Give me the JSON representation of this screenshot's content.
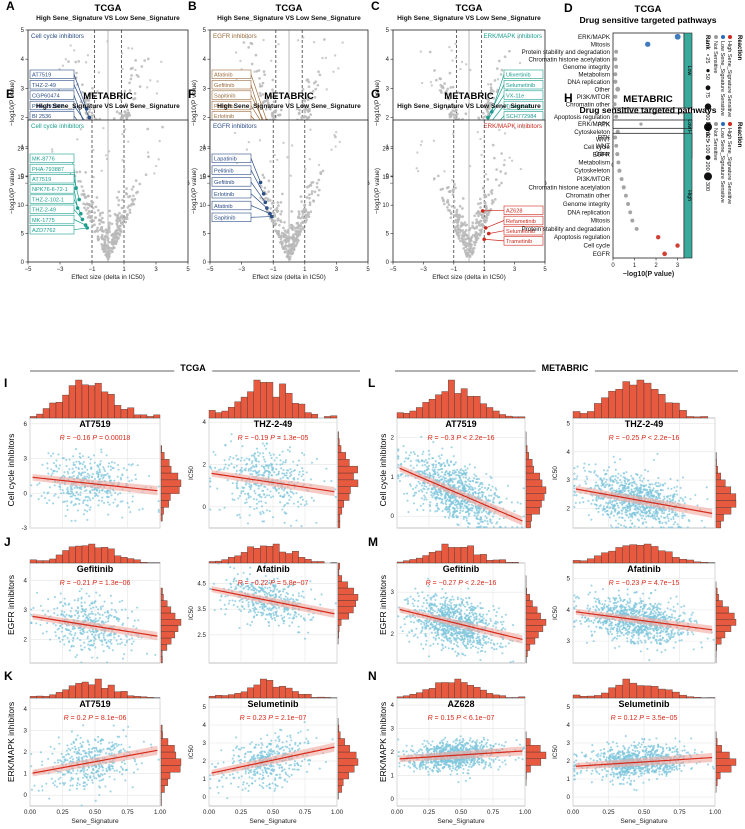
{
  "colors": {
    "gray_point": "#b8b8b8",
    "teal": "#1b9e8f",
    "navy": "#2b4d87",
    "brown": "#9c6b3c",
    "red": "#cc2a1f",
    "scatter_point": "#7ec5dc",
    "hist_fill": "#e85a3f",
    "reg_line": "#d72a1a",
    "blue_dot": "#2257a8",
    "legend_high": "#cc2a1f",
    "legend_low": "#2b6bb8",
    "legend_not": "#9a9a9a"
  },
  "volcano_common": {
    "subtitle": "High Sene_Signature VS Low Sene_Signature",
    "xlabel": "Effect size (delta in IC50)",
    "ylabel": "−log10(P value)"
  },
  "volcanos": [
    {
      "panel": "A",
      "title": "TCGA",
      "category": "Cell cycle inhibitors",
      "color": "navy",
      "side": "left",
      "xlim": [
        -6,
        6
      ],
      "xticks": [
        -6,
        -4,
        -2,
        0,
        2,
        4,
        6
      ],
      "ylim": [
        0,
        5
      ],
      "yticks": [
        0,
        1,
        2,
        3,
        4,
        5
      ],
      "labels": [
        "AT7519",
        "THZ-2-49",
        "CGP60474",
        "PHA-793887",
        "BI 2536",
        "NPK76-II-72-1",
        "CGP-082996",
        "MK-8776",
        "AZD7762"
      ],
      "labeled_points": [
        {
          "x": -1.6,
          "y": 2.3
        },
        {
          "x": -1.4,
          "y": 2.0
        },
        {
          "x": -1.8,
          "y": 1.8
        },
        {
          "x": -1.3,
          "y": 1.6
        },
        {
          "x": -1.5,
          "y": 1.4
        },
        {
          "x": -1.2,
          "y": 1.3
        },
        {
          "x": -1.4,
          "y": 1.1
        },
        {
          "x": -1.1,
          "y": 1.05
        },
        {
          "x": -1.0,
          "y": 1.0
        }
      ]
    },
    {
      "panel": "B",
      "title": "TCGA",
      "category": "EGFR inhibitors",
      "color": "brown",
      "side": "left",
      "xlim": [
        -6,
        6
      ],
      "xticks": [
        -6,
        -4,
        -2,
        0,
        2,
        4,
        6
      ],
      "ylim": [
        0,
        5
      ],
      "yticks": [
        0,
        1,
        2,
        3,
        4,
        5
      ],
      "labels": [
        "Afatinib",
        "Gefitinib",
        "Sapitinib",
        "Pelitinib",
        "Erlotinib",
        "Cetuximab",
        "Osimertinib"
      ],
      "labeled_points": [
        {
          "x": -1.7,
          "y": 1.9
        },
        {
          "x": -1.9,
          "y": 1.7
        },
        {
          "x": -1.5,
          "y": 1.5
        },
        {
          "x": -1.4,
          "y": 1.35
        },
        {
          "x": -1.2,
          "y": 1.2
        },
        {
          "x": -1.0,
          "y": 1.1
        },
        {
          "x": -1.3,
          "y": 1.0
        }
      ]
    },
    {
      "panel": "C",
      "title": "TCGA",
      "category": "ERK/MAPK inhibitors",
      "color": "teal",
      "side": "right",
      "xlim": [
        -6,
        6
      ],
      "xticks": [
        -6,
        -4,
        -2,
        0,
        2,
        4,
        6
      ],
      "ylim": [
        0,
        5
      ],
      "yticks": [
        0,
        1,
        2,
        3,
        4,
        5
      ],
      "labels": [
        "Ulixertinib",
        "Selumetinib",
        "VX-11e",
        "Trametinib",
        "SCH772984",
        "Dabrafenib",
        "Refametinib",
        "CI-1040"
      ],
      "labeled_points": [
        {
          "x": 1.8,
          "y": 2.2
        },
        {
          "x": 1.5,
          "y": 2.0
        },
        {
          "x": 1.3,
          "y": 1.8
        },
        {
          "x": 1.1,
          "y": 1.5
        },
        {
          "x": 1.2,
          "y": 1.3
        },
        {
          "x": 1.0,
          "y": 1.2
        },
        {
          "x": 1.1,
          "y": 1.05
        },
        {
          "x": 1.0,
          "y": 1.0
        }
      ]
    },
    {
      "panel": "E",
      "title": "METABRIC",
      "category": "Cell cycle inhibitors",
      "color": "teal",
      "side": "left",
      "xlim": [
        -5,
        5
      ],
      "xticks": [
        -5,
        -3,
        -1,
        1,
        3,
        5
      ],
      "ylim": [
        0,
        25
      ],
      "yticks": [
        0,
        5,
        10,
        15,
        20
      ],
      "labels": [
        "MK-8776",
        "PHA-793887",
        "AT7519",
        "NPK76-II-72-1",
        "THZ-2-102-1",
        "THZ-2-49",
        "MK-1775",
        "AZD7762"
      ],
      "labeled_points": [
        {
          "x": -2.4,
          "y": 15
        },
        {
          "x": -2.0,
          "y": 13
        },
        {
          "x": -1.8,
          "y": 11
        },
        {
          "x": -1.9,
          "y": 9.5
        },
        {
          "x": -1.7,
          "y": 8.5
        },
        {
          "x": -1.6,
          "y": 7.5
        },
        {
          "x": -1.4,
          "y": 6.5
        },
        {
          "x": -1.3,
          "y": 6.0
        }
      ]
    },
    {
      "panel": "F",
      "title": "METABRIC",
      "category": "EGFR inhibitors",
      "color": "navy",
      "side": "left",
      "xlim": [
        -5,
        5
      ],
      "xticks": [
        -5,
        -3,
        -1,
        1,
        3,
        5
      ],
      "ylim": [
        0,
        25
      ],
      "yticks": [
        0,
        5,
        10,
        15,
        20
      ],
      "labels": [
        "Lapatinib",
        "Pelitinib",
        "Gefitinib",
        "Erlotinib",
        "Afatinib",
        "Sapitinib"
      ],
      "labeled_points": [
        {
          "x": -1.8,
          "y": 14
        },
        {
          "x": -1.6,
          "y": 12
        },
        {
          "x": -1.5,
          "y": 10.5
        },
        {
          "x": -1.4,
          "y": 9.5
        },
        {
          "x": -1.2,
          "y": 8.5
        },
        {
          "x": -1.1,
          "y": 8.0
        }
      ]
    },
    {
      "panel": "G",
      "title": "METABRIC",
      "category": "ERK/MAPK inhibitors",
      "color": "red",
      "side": "right",
      "xlim": [
        -5,
        5
      ],
      "xticks": [
        -5,
        -3,
        -1,
        1,
        3,
        5
      ],
      "ylim": [
        0,
        25
      ],
      "yticks": [
        0,
        5,
        10,
        15,
        20
      ],
      "labels": [
        "AZ628",
        "Refametinib",
        "Selumetinib",
        "Trametinib"
      ],
      "labeled_points": [
        {
          "x": 0.9,
          "y": 9
        },
        {
          "x": 1.1,
          "y": 6
        },
        {
          "x": 1.3,
          "y": 5
        },
        {
          "x": 1.0,
          "y": 4
        }
      ]
    }
  ],
  "dotplots": [
    {
      "panel": "D",
      "title": "TCGA",
      "subtitle": "Drug sensitive targeted pathways",
      "xlabel": "−log10(P value)",
      "xlim": [
        0,
        4.5
      ],
      "xticks": [
        0,
        1,
        2,
        3,
        4
      ],
      "legend_reaction_title": "Reaction",
      "legend_reaction": [
        "High Sene_Signature Sensitive",
        "Low Sene_Signature Sensitive",
        "Not Sensitive"
      ],
      "legend_rank_title": "Rank",
      "legend_rank": [
        "25",
        "50",
        "75",
        "100",
        "125"
      ],
      "groups": [
        {
          "name": "Low",
          "pathways": [
            "ERK/MAPK",
            "Mitosis",
            "Protein stability and degradation",
            "Chromatin histone acetylation",
            "Genome integrity",
            "Metabolism",
            "DNA replication",
            "Other",
            "PI3K/MTOR",
            "Chromatin other"
          ],
          "values": [
            4.1,
            2.2,
            0.2,
            0.15,
            0.2,
            0.15,
            0.15,
            0.3,
            0.15,
            0.1
          ],
          "sizes": [
            0.8,
            0.7,
            0.4,
            0.4,
            0.4,
            0.4,
            0.45,
            0.6,
            0.45,
            0.4
          ],
          "reaction": [
            "low",
            "low",
            "not",
            "not",
            "not",
            "not",
            "not",
            "not",
            "not",
            "not"
          ]
        },
        {
          "name": "High",
          "pathways": [
            "Apoptosis regulation",
            "RTK",
            "Cytoskeleton",
            "WNT",
            "Cell cycle",
            "EGFR"
          ],
          "values": [
            0.2,
            0.1,
            0.3,
            0.2,
            2.5,
            2.0
          ],
          "sizes": [
            0.4,
            0.35,
            0.45,
            0.4,
            0.55,
            0.7
          ],
          "reaction": [
            "not",
            "not",
            "not",
            "not",
            "high",
            "high"
          ]
        }
      ]
    },
    {
      "panel": "H",
      "title": "METABRIC",
      "subtitle": "Drug sensitive targeted pathways",
      "xlabel": "−log10(P value)",
      "xlim": [
        0,
        3.3
      ],
      "xticks": [
        0,
        1,
        2,
        3
      ],
      "legend_reaction_title": "Reaction",
      "legend_reaction": [
        "High Sene_Signature Sensitive",
        "Low Sene_Signature Sensitive",
        "Not Sensitive"
      ],
      "legend_rank_title": "Rank",
      "legend_rank": [
        "100",
        "200",
        "300"
      ],
      "groups": [
        {
          "name": "Low",
          "pathways": [
            "ERK/MAPK"
          ],
          "values": [
            1.3
          ],
          "sizes": [
            0.25
          ],
          "reaction": [
            "not"
          ]
        },
        {
          "name": "High",
          "pathways": [
            "RTK",
            "WNT",
            "Other",
            "Metabolism",
            "Cytoskeleton",
            "PI3K/MTOR",
            "Chromatin histone acetylation",
            "Chromatin other",
            "Genome integrity",
            "DNA replication",
            "Mitosis",
            "Protein stability and degradation",
            "Apoptosis regulation",
            "Cell cycle",
            "EGFR"
          ],
          "values": [
            0.1,
            0.15,
            0.2,
            0.25,
            0.3,
            0.4,
            0.5,
            0.6,
            0.7,
            0.8,
            0.9,
            1.1,
            2.1,
            3.0,
            2.4
          ],
          "sizes": [
            0.4,
            0.4,
            0.45,
            0.4,
            0.45,
            0.4,
            0.45,
            0.4,
            0.4,
            0.4,
            0.4,
            0.4,
            0.5,
            0.5,
            0.55
          ],
          "reaction": [
            "not",
            "not",
            "not",
            "not",
            "not",
            "not",
            "not",
            "not",
            "not",
            "not",
            "not",
            "not",
            "high",
            "high",
            "high"
          ]
        }
      ]
    }
  ],
  "section_titles": {
    "tcga": "TCGA",
    "metabric": "METABRIC"
  },
  "row_labels": [
    "Cell cycle inhibitors",
    "EGFR inhibitors",
    "ERK/MAPK inhibitors"
  ],
  "scatter_panels_letters": {
    "I": "I",
    "J": "J",
    "K": "K",
    "L": "L",
    "M": "M",
    "N": "N"
  },
  "scatter_xlabel": "Sene_Signature",
  "scatter_ylabel": "IC50",
  "scatter_xticks": [
    "0.00",
    "0.25",
    "0.50",
    "0.75",
    "1.00"
  ],
  "chart_data": [
    {
      "type": "scatter",
      "dataset": "TCGA",
      "row": 0,
      "drug": "AT7519",
      "R": "−0.16",
      "P": "0.00018",
      "ylim": [
        -3,
        6.5
      ],
      "yticks": [
        -3,
        0,
        3,
        6
      ],
      "slope": -1.2,
      "intercept": 1.4,
      "n": 420,
      "sd": 1.2
    },
    {
      "type": "scatter",
      "dataset": "TCGA",
      "row": 0,
      "drug": "THZ-2-49",
      "R": "−0.19",
      "P": "1.3e−05",
      "ylim": [
        -1,
        4.2
      ],
      "yticks": [
        0,
        2,
        4
      ],
      "slope": -0.9,
      "intercept": 1.6,
      "n": 420,
      "sd": 0.8
    },
    {
      "type": "scatter",
      "dataset": "METABRIC",
      "row": 0,
      "drug": "AT7519",
      "R": "−0.3",
      "P": "< 2.2e−16",
      "ylim": [
        -0.3,
        2.5
      ],
      "yticks": [
        0,
        1,
        2
      ],
      "slope": -1.4,
      "intercept": 1.25,
      "n": 900,
      "sd": 0.35
    },
    {
      "type": "scatter",
      "dataset": "METABRIC",
      "row": 0,
      "drug": "THZ-2-49",
      "R": "−0.25",
      "P": "< 2.2e−16",
      "ylim": [
        1.3,
        5.2
      ],
      "yticks": [
        2,
        3,
        4,
        5
      ],
      "slope": -0.9,
      "intercept": 2.7,
      "n": 900,
      "sd": 0.45
    },
    {
      "type": "scatter",
      "dataset": "TCGA",
      "row": 1,
      "drug": "Gefitinib",
      "R": "−0.21",
      "P": "1.3e−06",
      "ylim": [
        1.2,
        4.6
      ],
      "yticks": [
        2,
        3,
        4
      ],
      "slope": -0.7,
      "intercept": 2.8,
      "n": 420,
      "sd": 0.45
    },
    {
      "type": "scatter",
      "dataset": "TCGA",
      "row": 1,
      "drug": "Afatinib",
      "R": "−0.22",
      "P": "5.8e−07",
      "ylim": [
        1.4,
        5.3
      ],
      "yticks": [
        2.5,
        3.5,
        4.5
      ],
      "slope": -1.0,
      "intercept": 4.3,
      "n": 420,
      "sd": 0.45
    },
    {
      "type": "scatter",
      "dataset": "METABRIC",
      "row": 1,
      "drug": "Gefitinib",
      "R": "−0.27",
      "P": "< 2.2e−16",
      "ylim": [
        1.3,
        3.7
      ],
      "yticks": [
        2,
        3
      ],
      "slope": -0.75,
      "intercept": 2.6,
      "n": 900,
      "sd": 0.3
    },
    {
      "type": "scatter",
      "dataset": "METABRIC",
      "row": 1,
      "drug": "Afatinib",
      "R": "−0.23",
      "P": "4.7e−15",
      "ylim": [
        2.3,
        5.5
      ],
      "yticks": [
        3,
        4,
        5
      ],
      "slope": -0.6,
      "intercept": 3.95,
      "n": 900,
      "sd": 0.35
    },
    {
      "type": "scatter",
      "dataset": "TCGA",
      "row": 2,
      "drug": "AT7519",
      "R": "0.2",
      "P": "8.1e−06",
      "ylim": [
        -0.5,
        4.5
      ],
      "yticks": [
        0,
        1,
        2,
        3,
        4
      ],
      "slope": 1.1,
      "intercept": 1.0,
      "n": 420,
      "sd": 0.6
    },
    {
      "type": "scatter",
      "dataset": "TCGA",
      "row": 2,
      "drug": "Selumetinib",
      "R": "0.23",
      "P": "2.1e−07",
      "ylim": [
        -0.5,
        5.5
      ],
      "yticks": [
        0,
        1,
        2,
        3,
        4,
        5
      ],
      "slope": 1.5,
      "intercept": 1.3,
      "n": 420,
      "sd": 0.7
    },
    {
      "type": "scatter",
      "dataset": "METABRIC",
      "row": 2,
      "drug": "AZ628",
      "R": "0.15",
      "P": "< 6.1e−07",
      "ylim": [
        -0.3,
        4.3
      ],
      "yticks": [
        0,
        1,
        2,
        3,
        4
      ],
      "slope": 0.35,
      "intercept": 1.7,
      "n": 900,
      "sd": 0.3
    },
    {
      "type": "scatter",
      "dataset": "METABRIC",
      "row": 2,
      "drug": "Selumetinib",
      "R": "0.12",
      "P": "3.5e−05",
      "ylim": [
        -0.5,
        5.5
      ],
      "yticks": [
        0,
        1,
        2,
        3,
        4,
        5
      ],
      "slope": 0.5,
      "intercept": 1.7,
      "n": 900,
      "sd": 0.45
    }
  ]
}
